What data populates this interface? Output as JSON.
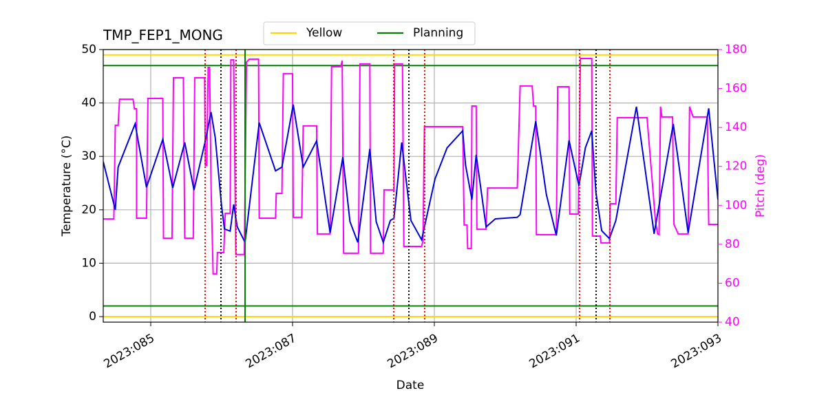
{
  "chart_data": {
    "type": "line",
    "title": "TMP_FEP1_MONG",
    "xlabel": "Date",
    "ylabel": "Temperature (°C)",
    "y2label": "Pitch (deg)",
    "xlim": [
      84.33,
      93.0
    ],
    "ylim": [
      -1.03,
      50
    ],
    "y2lim": [
      40,
      180
    ],
    "xticks": [
      {
        "value": 85,
        "label": "2023:085"
      },
      {
        "value": 87,
        "label": "2023:087"
      },
      {
        "value": 89,
        "label": "2023:089"
      },
      {
        "value": 91,
        "label": "2023:091"
      },
      {
        "value": 93,
        "label": "2023:093"
      }
    ],
    "yticks": [
      0,
      10,
      20,
      30,
      40,
      50
    ],
    "y2ticks": [
      40,
      60,
      80,
      100,
      120,
      140,
      160,
      180
    ],
    "grid": true,
    "y2color": "#ff00ff",
    "series": [
      {
        "name": "Yellow",
        "color": "#ffd700",
        "values": [
          49,
          0
        ]
      },
      {
        "name": "Planning",
        "color": "#008000",
        "values": [
          47,
          2
        ]
      }
    ],
    "temperature": {
      "color": "#0000dd",
      "x": [
        84.33,
        84.5,
        84.54,
        84.78,
        84.94,
        85.17,
        85.31,
        85.48,
        85.61,
        85.77,
        85.85,
        85.91,
        86.0,
        86.04,
        86.12,
        86.17,
        86.22,
        86.33,
        86.53,
        86.76,
        86.85,
        87.01,
        87.15,
        87.34,
        87.53,
        87.71,
        87.81,
        87.92,
        88.09,
        88.18,
        88.28,
        88.38,
        88.43,
        88.54,
        88.67,
        88.82,
        89.01,
        89.18,
        89.4,
        89.44,
        89.53,
        89.59,
        89.73,
        89.86,
        90.17,
        90.21,
        90.43,
        90.58,
        90.72,
        90.9,
        91.04,
        91.13,
        91.22,
        91.28,
        91.36,
        91.47,
        91.56,
        91.85,
        92.1,
        92.37,
        92.58,
        92.87,
        93.0
      ],
      "values": [
        29.0,
        20.0,
        28.0,
        36.1,
        24.2,
        33.2,
        24.1,
        32.6,
        23.7,
        32.9,
        38.3,
        33.5,
        20.6,
        16.4,
        16.0,
        21.0,
        16.8,
        13.9,
        36.3,
        27.3,
        28.0,
        39.7,
        28.0,
        32.9,
        15.7,
        29.9,
        17.8,
        13.9,
        31.4,
        17.8,
        13.9,
        18.0,
        18.4,
        32.6,
        18.0,
        14.4,
        25.8,
        31.6,
        34.8,
        28.4,
        21.9,
        30.3,
        16.8,
        18.3,
        18.6,
        19.1,
        36.6,
        22.9,
        15.2,
        33.0,
        24.5,
        31.6,
        34.8,
        23.2,
        16.1,
        14.6,
        18.0,
        39.3,
        15.5,
        36.1,
        15.7,
        39.0,
        21.9
      ]
    },
    "pitch": {
      "color": "#ff00ff",
      "axis": "y2",
      "x": [
        84.33,
        84.48,
        84.5,
        84.54,
        84.56,
        84.75,
        84.77,
        84.8,
        84.8,
        84.94,
        84.96,
        85.17,
        85.18,
        85.3,
        85.32,
        85.46,
        85.48,
        85.6,
        85.62,
        85.76,
        85.77,
        85.79,
        85.81,
        85.83,
        85.85,
        85.88,
        85.93,
        85.94,
        86.03,
        86.05,
        86.12,
        86.13,
        86.17,
        86.2,
        86.32,
        86.35,
        86.39,
        86.52,
        86.53,
        86.76,
        86.77,
        86.85,
        86.87,
        87.0,
        87.01,
        87.13,
        87.15,
        87.34,
        87.35,
        87.53,
        87.55,
        87.68,
        87.7,
        87.72,
        87.93,
        87.95,
        88.09,
        88.1,
        88.28,
        88.29,
        88.43,
        88.44,
        88.55,
        88.57,
        88.82,
        88.84,
        88.86,
        89.4,
        89.42,
        89.46,
        89.47,
        89.52,
        89.53,
        89.59,
        89.6,
        89.73,
        89.75,
        90.17,
        90.21,
        90.38,
        90.4,
        90.43,
        90.44,
        90.72,
        90.74,
        90.9,
        90.91,
        91.03,
        91.06,
        91.22,
        91.23,
        91.34,
        91.35,
        91.47,
        91.48,
        91.56,
        91.58,
        92.0,
        92.12,
        92.15,
        92.17,
        92.19,
        92.21,
        92.36,
        92.38,
        92.44,
        92.58,
        92.6,
        92.65,
        92.85,
        92.87,
        93.0
      ],
      "values": [
        93.0,
        93.0,
        141.1,
        141.1,
        154.5,
        154.5,
        149.6,
        149.6,
        93.4,
        93.4,
        154.9,
        154.9,
        83.1,
        83.1,
        165.5,
        165.5,
        83.1,
        83.1,
        165.5,
        165.5,
        120.6,
        120.6,
        170.8,
        170.8,
        110.0,
        64.8,
        64.8,
        75.7,
        75.7,
        95.9,
        95.9,
        174.7,
        174.7,
        74.7,
        74.7,
        173.6,
        175.1,
        175.1,
        93.4,
        93.4,
        106.1,
        106.1,
        167.6,
        167.6,
        93.8,
        93.8,
        140.8,
        140.8,
        85.3,
        85.3,
        171.2,
        171.2,
        174.3,
        75.4,
        75.4,
        172.6,
        172.6,
        75.4,
        75.4,
        107.9,
        107.9,
        172.6,
        172.6,
        78.9,
        78.9,
        81.7,
        140.4,
        140.4,
        89.9,
        89.9,
        77.8,
        77.8,
        151.0,
        151.0,
        87.7,
        87.7,
        108.9,
        108.9,
        161.3,
        161.3,
        151.0,
        151.0,
        84.9,
        84.9,
        160.9,
        160.9,
        95.5,
        95.5,
        175.4,
        175.4,
        84.2,
        84.2,
        80.7,
        80.7,
        100.8,
        100.8,
        145.0,
        145.0,
        91.3,
        85.3,
        84.9,
        150.7,
        145.4,
        145.4,
        90.2,
        85.3,
        85.3,
        150.7,
        145.4,
        145.4,
        90.2,
        90.2
      ]
    },
    "vlines": [
      {
        "color": "#ff0000",
        "style": "dotted",
        "x": [
          85.767,
          86.204,
          88.427,
          88.864,
          91.049,
          91.476
        ]
      },
      {
        "color": "#000000",
        "style": "dotted",
        "x": [
          85.99,
          88.641,
          91.282
        ]
      },
      {
        "color": "#008000",
        "style": "solid",
        "x": [
          86.33
        ]
      }
    ]
  }
}
